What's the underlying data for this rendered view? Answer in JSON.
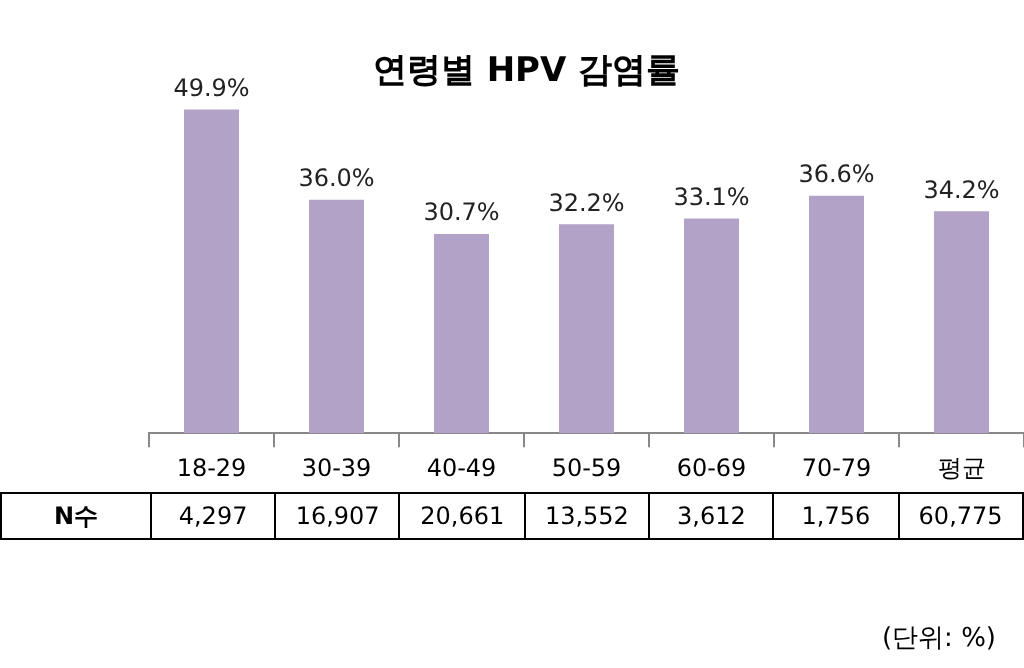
{
  "chart_data": {
    "type": "bar",
    "title": "연령별 HPV 감염률",
    "categories": [
      "18-29",
      "30-39",
      "40-49",
      "50-59",
      "60-69",
      "70-79",
      "평균"
    ],
    "values": [
      49.9,
      36.0,
      30.7,
      32.2,
      33.1,
      36.6,
      34.2
    ],
    "value_labels": [
      "49.9%",
      "36.0%",
      "30.7%",
      "32.2%",
      "33.1%",
      "36.6%",
      "34.2%"
    ],
    "color": "#b3a2c7",
    "grid": false,
    "legend": false,
    "annotations": [
      "N수",
      "4,297",
      "16,907",
      "20,661",
      "13,552",
      "3,612",
      "1,756",
      "60,775",
      "(단위: %)"
    ]
  }
}
